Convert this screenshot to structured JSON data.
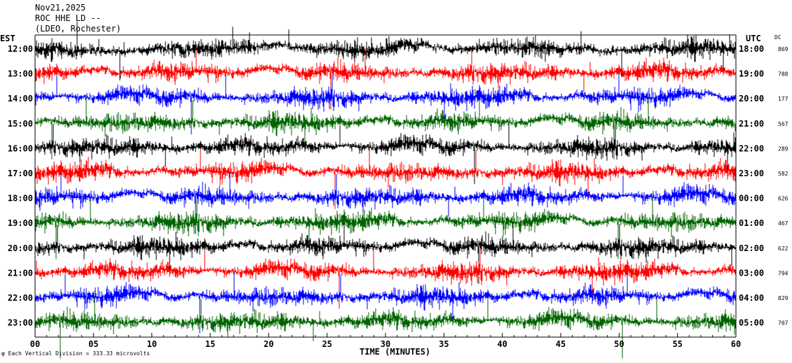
{
  "chart_data": {
    "type": "line",
    "title": "Nov21,2025",
    "station": "ROC HHE LD --",
    "location": "(LDEO, Rochester)",
    "xlabel": "TIME (MINUTES)",
    "x_ticks": [
      "00",
      "05",
      "10",
      "15",
      "20",
      "25",
      "30",
      "35",
      "40",
      "45",
      "50",
      "55",
      "60"
    ],
    "xlim": [
      0,
      60
    ],
    "left_axis_label": "EST",
    "right_axis_label": "UTC",
    "dc_label": "DC",
    "rows": [
      {
        "est": "12:00",
        "utc": "18:00",
        "dc": "869",
        "color": "#000000"
      },
      {
        "est": "13:00",
        "utc": "19:00",
        "dc": "788",
        "color": "#ff0000"
      },
      {
        "est": "14:00",
        "utc": "20:00",
        "dc": "177",
        "color": "#0000ff"
      },
      {
        "est": "15:00",
        "utc": "21:00",
        "dc": "567",
        "color": "#006400"
      },
      {
        "est": "16:00",
        "utc": "22:00",
        "dc": "289",
        "color": "#000000"
      },
      {
        "est": "17:00",
        "utc": "23:00",
        "dc": "582",
        "color": "#ff0000"
      },
      {
        "est": "18:00",
        "utc": "00:00",
        "dc": "626",
        "color": "#0000ff"
      },
      {
        "est": "19:00",
        "utc": "01:00",
        "dc": "467",
        "color": "#006400"
      },
      {
        "est": "20:00",
        "utc": "02:00",
        "dc": "622",
        "color": "#000000"
      },
      {
        "est": "21:00",
        "utc": "03:00",
        "dc": "794",
        "color": "#ff0000"
      },
      {
        "est": "22:00",
        "utc": "04:00",
        "dc": "829",
        "color": "#0000ff"
      },
      {
        "est": "23:00",
        "utc": "05:00",
        "dc": "707",
        "color": "#006400"
      }
    ],
    "footer_note": "Each Vertical Division = 333.33 microvolts",
    "trace_colors": [
      "#000000",
      "#ff0000",
      "#0000ff",
      "#006400"
    ]
  }
}
